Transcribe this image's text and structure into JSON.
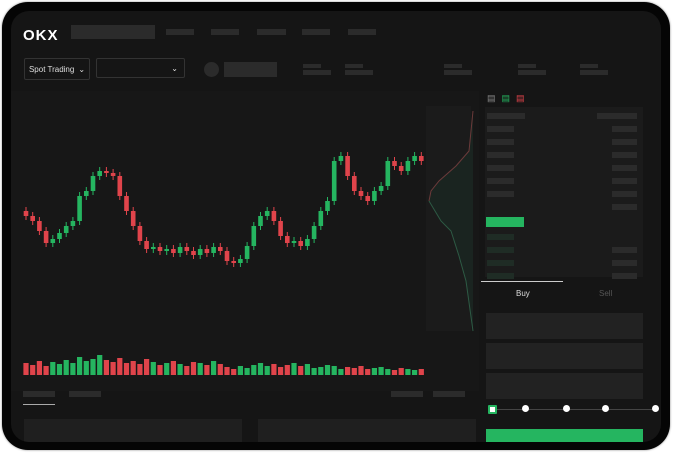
{
  "header": {
    "logo": "OKX"
  },
  "toolbar": {
    "market_type": "Spot Trading",
    "pair_select": ""
  },
  "order_form": {
    "tabs": [
      {
        "label": "Buy",
        "active": true
      },
      {
        "label": "Sell",
        "active": false
      }
    ],
    "slider_level": 0
  },
  "colors": {
    "up": "#25b560",
    "down": "#e0444b",
    "background": "#151515"
  },
  "chart_data": {
    "type": "candlestick",
    "close": [
      95,
      90,
      80,
      68,
      72,
      78,
      85,
      90,
      115,
      120,
      135,
      140,
      138,
      135,
      115,
      100,
      85,
      70,
      62,
      64,
      60,
      62,
      58,
      64,
      60,
      56,
      62,
      58,
      64,
      60,
      50,
      48,
      52,
      65,
      85,
      95,
      100,
      90,
      75,
      68,
      70,
      65,
      72,
      85,
      100,
      110,
      150,
      155,
      135,
      120,
      115,
      110,
      120,
      125,
      150,
      145,
      140,
      150,
      155,
      150
    ],
    "volume": [
      12,
      10,
      14,
      9,
      13,
      11,
      15,
      12,
      18,
      14,
      16,
      20,
      15,
      13,
      17,
      12,
      14,
      11,
      16,
      13,
      10,
      12,
      14,
      11,
      9,
      13,
      12,
      10,
      14,
      11,
      8,
      6,
      9,
      7,
      10,
      12,
      9,
      11,
      8,
      10,
      12,
      9,
      11,
      7,
      8,
      10,
      9,
      6,
      8,
      7,
      9,
      6,
      7,
      8,
      6,
      5,
      7,
      6,
      5,
      6
    ]
  }
}
